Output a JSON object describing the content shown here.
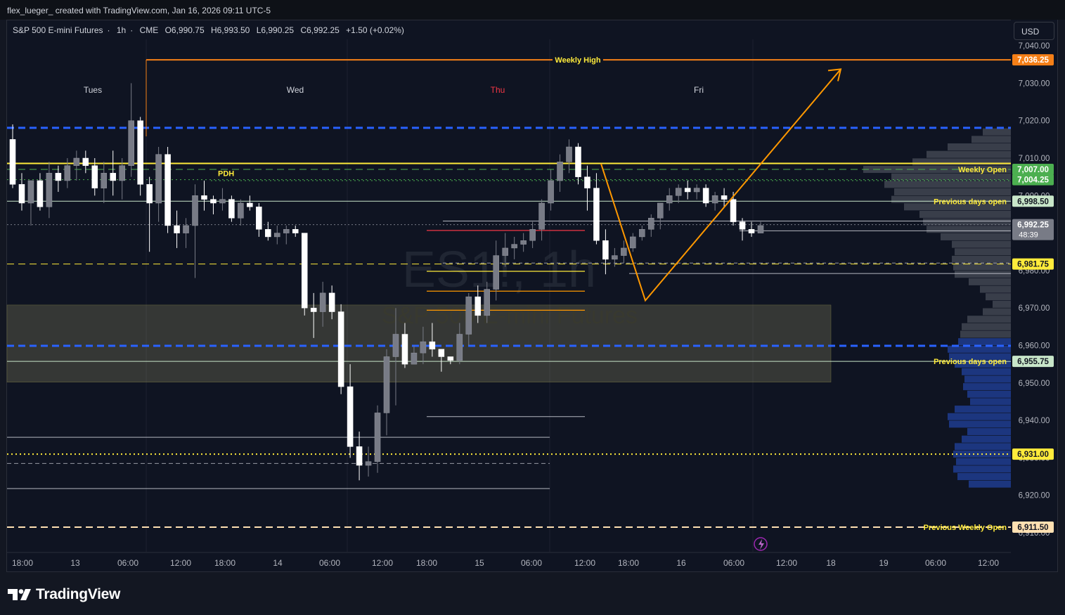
{
  "header": {
    "credit": "flex_lueger_ created with TradingView.com, Jan 16, 2026 09:11 UTC-5"
  },
  "symbol_bar": {
    "name": "S&P 500 E-mini Futures",
    "interval": "1h",
    "exchange": "CME",
    "open": "O6,990.75",
    "high": "H6,993.50",
    "low": "L6,990.25",
    "close": "C6,992.25",
    "change": "+1.50 (+0.02%)"
  },
  "currency_button": "USD",
  "watermark": {
    "symbol": "ES1!, 1h",
    "description": "S&P 500 E-mini Futures"
  },
  "footer": {
    "brand": "TradingView"
  },
  "colors": {
    "background": "#0f1422",
    "bull_candle": "#787b86",
    "bear_candle": "#ffffff",
    "weekly_high": "#f57f17",
    "pdh": "#ffeb3b",
    "previous_days_open": "#c8e6c9",
    "blue_level": "#2962ff",
    "volume_profile_upper": "#5d606b",
    "volume_profile_lower": "#1e3a8a",
    "price_label_yellow": "#ffeb3b",
    "price_label_green": "#4caf50"
  },
  "chart_data": {
    "type": "candlestick",
    "title": "S&P 500 E-mini Futures · 1h · CME",
    "y_axis": {
      "ticks": [
        6910,
        6920,
        6930,
        6940,
        6950,
        6960,
        6970,
        6980,
        6990,
        7000,
        7010,
        7020,
        7030,
        7040
      ],
      "tick_labels": [
        "6,910.00",
        "6,920.00",
        "6,930.00",
        "6,940.00",
        "6,950.00",
        "6,960.00",
        "6,970.00",
        "6,980.00",
        "6,990.00",
        "7,000.00",
        "7,010.00",
        "7,020.00",
        "7,030.00",
        "7,040.00"
      ],
      "ylim": [
        6907,
        7047
      ]
    },
    "x_axis": {
      "tick_labels": [
        "18:00",
        "13",
        "06:00",
        "12:00",
        "18:00",
        "14",
        "06:00",
        "12:00",
        "18:00",
        "15",
        "06:00",
        "12:00",
        "18:00",
        "16",
        "06:00",
        "12:00",
        "18",
        "19",
        "06:00",
        "12:00"
      ]
    },
    "day_labels": [
      "Tues",
      "Wed",
      "Thu",
      "Fri"
    ],
    "day_label_colors": [
      "#d1d4dc",
      "#d1d4dc",
      "#f23645",
      "#d1d4dc"
    ],
    "candles": [
      [
        7015,
        7019,
        7002,
        7003
      ],
      [
        7003,
        7006,
        6996,
        6998
      ],
      [
        6998,
        7004,
        6992,
        7004
      ],
      [
        7004,
        7006,
        6996,
        6997
      ],
      [
        6997,
        7009,
        6994,
        7006
      ],
      [
        7006,
        7008,
        7001,
        7004
      ],
      [
        7004,
        7010,
        7002,
        7008
      ],
      [
        7008,
        7012,
        7004,
        7010
      ],
      [
        7010,
        7012,
        7006,
        7008
      ],
      [
        7008,
        7010,
        7000,
        7002
      ],
      [
        7002,
        7009,
        6998,
        7006
      ],
      [
        7006,
        7012,
        7000,
        7004
      ],
      [
        7004,
        7010,
        6999,
        7008
      ],
      [
        7008,
        7030,
        7005,
        7020
      ],
      [
        7020,
        7021,
        7000,
        7003
      ],
      [
        7003,
        7005,
        6985,
        6998
      ],
      [
        6998,
        7013,
        6993,
        7011
      ],
      [
        7011,
        7013,
        6990,
        6992
      ],
      [
        6992,
        6996,
        6986,
        6990
      ],
      [
        6990,
        6994,
        6986,
        6992
      ],
      [
        6992,
        7003,
        6978,
        7000
      ],
      [
        7000,
        7004,
        6996,
        6999
      ],
      [
        6999,
        7000,
        6995,
        6998
      ],
      [
        6998,
        7002,
        6996,
        6999
      ],
      [
        6999,
        7000,
        6993,
        6994
      ],
      [
        6994,
        6999,
        6992,
        6998
      ],
      [
        6998,
        7000,
        6996,
        6997
      ],
      [
        6997,
        6998,
        6989,
        6991
      ],
      [
        6991,
        6993,
        6988,
        6989
      ],
      [
        6989,
        6992,
        6987,
        6990
      ],
      [
        6990,
        6992,
        6987,
        6991
      ],
      [
        6991,
        6992,
        6989,
        6990
      ],
      [
        6990,
        6990,
        6968,
        6970
      ],
      [
        6970,
        6974,
        6962,
        6969
      ],
      [
        6969,
        6977,
        6965,
        6974
      ],
      [
        6974,
        6976,
        6967,
        6969
      ],
      [
        6969,
        6971,
        6947,
        6949
      ],
      [
        6949,
        6955,
        6930,
        6933
      ],
      [
        6933,
        6937,
        6924,
        6928
      ],
      [
        6928,
        6933,
        6925,
        6929
      ],
      [
        6929,
        6944,
        6926,
        6942
      ],
      [
        6942,
        6959,
        6936,
        6957
      ],
      [
        6957,
        6970,
        6944,
        6963
      ],
      [
        6963,
        6966,
        6954,
        6955
      ],
      [
        6955,
        6960,
        6955,
        6958
      ],
      [
        6958,
        6965,
        6955,
        6961
      ],
      [
        6961,
        6966,
        6957,
        6959
      ],
      [
        6959,
        6959,
        6953,
        6957
      ],
      [
        6957,
        6957,
        6955,
        6956
      ],
      [
        6956,
        6966,
        6955,
        6963
      ],
      [
        6963,
        6974,
        6960,
        6973
      ],
      [
        6973,
        6976,
        6966,
        6968
      ],
      [
        6968,
        6977,
        6966,
        6975
      ],
      [
        6975,
        6988,
        6972,
        6984
      ],
      [
        6984,
        6990,
        6981,
        6986
      ],
      [
        6986,
        6989,
        6983,
        6987
      ],
      [
        6987,
        6990,
        6985,
        6988
      ],
      [
        6988,
        6993,
        6986,
        6991
      ],
      [
        6991,
        6999,
        6988,
        6998
      ],
      [
        6998,
        7007,
        6996,
        7004
      ],
      [
        7004,
        7011,
        7001,
        7009
      ],
      [
        7009,
        7015,
        7006,
        7013
      ],
      [
        7013,
        7014,
        7003,
        7005
      ],
      [
        7005,
        7008,
        6996,
        7002
      ],
      [
        7002,
        7006,
        6987,
        6988
      ],
      [
        6988,
        6991,
        6979,
        6983
      ],
      [
        6983,
        6986,
        6981,
        6984
      ],
      [
        6984,
        6988,
        6982,
        6986
      ],
      [
        6986,
        6990,
        6985,
        6989
      ],
      [
        6989,
        6992,
        6988,
        6991
      ],
      [
        6991,
        6995,
        6989,
        6994
      ],
      [
        6994,
        6998,
        6991,
        6998
      ],
      [
        6998,
        7002,
        6996,
        7000
      ],
      [
        7000,
        7003,
        6998,
        7002
      ],
      [
        7002,
        7004,
        6999,
        7001
      ],
      [
        7001,
        7003,
        6999,
        7002
      ],
      [
        7002,
        7003,
        6997,
        6998
      ],
      [
        6998,
        7001,
        6996,
        7000
      ],
      [
        7000,
        7002,
        6997,
        6999
      ],
      [
        6999,
        7001,
        6992,
        6993
      ],
      [
        6993,
        6994,
        6988,
        6991
      ],
      [
        6991,
        6993,
        6989,
        6990
      ],
      [
        6990,
        6993,
        6990,
        6992
      ]
    ],
    "levels": [
      {
        "name": "Weekly High",
        "price": 7036.25,
        "label": "Weekly High",
        "price_label": "7,036.25",
        "color": "#f57f17",
        "style": "solid"
      },
      {
        "name": "blue-upper",
        "price": 7018.1,
        "color": "#2962ff",
        "style": "dashed"
      },
      {
        "name": "PDH",
        "price": 7008.6,
        "label": "PDH",
        "color": "#ffeb3b",
        "style": "solid"
      },
      {
        "name": "Weekly Open",
        "price": 7007.0,
        "label": "Weekly Open",
        "price_label": "7,007.00",
        "color": "#4caf50",
        "style": "dashed"
      },
      {
        "name": "level-7004",
        "price": 7004.25,
        "price_label": "7,004.25",
        "color": "#4caf50",
        "style": "dotted"
      },
      {
        "name": "Previous days open upper",
        "price": 6998.5,
        "label": "Previous days open",
        "price_label": "6,998.50",
        "color": "#c8e6c9",
        "style": "solid"
      },
      {
        "name": "current price",
        "price": 6992.25,
        "price_label": "6,992.25",
        "countdown": "48:39",
        "color": "#787b86",
        "style": "dotted"
      },
      {
        "name": "level-6981",
        "price": 6981.75,
        "price_label": "6,981.75",
        "color": "#ffeb3b",
        "style": "dashed"
      },
      {
        "name": "blue-lower",
        "price": 6959.9,
        "color": "#2962ff",
        "style": "dashed"
      },
      {
        "name": "Previous days open lower",
        "price": 6955.75,
        "label": "Previous days open",
        "price_label": "6,955.75",
        "color": "#c8e6c9",
        "style": "solid"
      },
      {
        "name": "level-6931",
        "price": 6931.0,
        "price_label": "6,931.00",
        "color": "#ffeb3b",
        "style": "dotted"
      },
      {
        "name": "Previous Weekly Open",
        "price": 6911.5,
        "label": "Previous Weekly Open",
        "price_label": "6,911.50",
        "color": "#ffe0b2",
        "style": "dashed"
      }
    ],
    "zone": {
      "from": 6950.2,
      "to": 6970.8,
      "color": "#fff59d"
    },
    "projection": {
      "points": [
        [
          7008.5
        ],
        [
          6972
        ],
        [
          7036
        ]
      ]
    }
  }
}
